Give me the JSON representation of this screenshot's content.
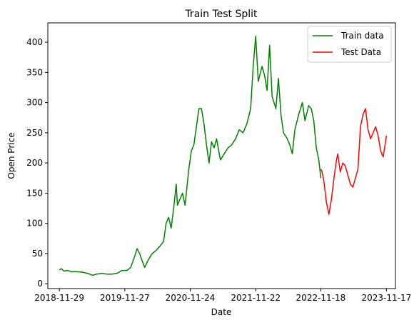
{
  "chart_data": {
    "type": "line",
    "title": "Train Test Split",
    "xlabel": "Date",
    "ylabel": "Open Price",
    "xlim": [
      "2018-09-26",
      "2024-01-06"
    ],
    "ylim": [
      -8,
      432
    ],
    "grid": false,
    "legend": "top-right",
    "x_ticks": [
      "2018-11-29",
      "2019-11-27",
      "2020-11-24",
      "2021-11-22",
      "2022-11-18",
      "2023-11-17"
    ],
    "y_ticks": [
      0,
      50,
      100,
      150,
      200,
      250,
      300,
      350,
      400
    ],
    "series": [
      {
        "name": "Train data",
        "color": "#008000",
        "points": [
          [
            "2018-11-29",
            23
          ],
          [
            "2018-12-10",
            25
          ],
          [
            "2018-12-24",
            21
          ],
          [
            "2019-01-14",
            22
          ],
          [
            "2019-02-04",
            20
          ],
          [
            "2019-03-04",
            20
          ],
          [
            "2019-04-08",
            19
          ],
          [
            "2019-05-06",
            17
          ],
          [
            "2019-06-03",
            14
          ],
          [
            "2019-06-24",
            16
          ],
          [
            "2019-07-22",
            17
          ],
          [
            "2019-08-19",
            16
          ],
          [
            "2019-09-16",
            16
          ],
          [
            "2019-10-14",
            17
          ],
          [
            "2019-11-11",
            22
          ],
          [
            "2019-12-09",
            22
          ],
          [
            "2019-12-30",
            27
          ],
          [
            "2020-01-20",
            45
          ],
          [
            "2020-02-03",
            58
          ],
          [
            "2020-02-17",
            50
          ],
          [
            "2020-03-02",
            38
          ],
          [
            "2020-03-16",
            27
          ],
          [
            "2020-04-06",
            40
          ],
          [
            "2020-04-27",
            50
          ],
          [
            "2020-05-18",
            55
          ],
          [
            "2020-06-08",
            62
          ],
          [
            "2020-06-29",
            70
          ],
          [
            "2020-07-13",
            100
          ],
          [
            "2020-07-27",
            110
          ],
          [
            "2020-08-10",
            92
          ],
          [
            "2020-08-24",
            125
          ],
          [
            "2020-09-07",
            165
          ],
          [
            "2020-09-14",
            130
          ],
          [
            "2020-09-28",
            140
          ],
          [
            "2020-10-12",
            150
          ],
          [
            "2020-10-26",
            130
          ],
          [
            "2020-11-16",
            190
          ],
          [
            "2020-11-30",
            220
          ],
          [
            "2020-12-14",
            230
          ],
          [
            "2020-12-28",
            260
          ],
          [
            "2021-01-11",
            290
          ],
          [
            "2021-01-25",
            290
          ],
          [
            "2021-02-08",
            265
          ],
          [
            "2021-02-22",
            230
          ],
          [
            "2021-03-08",
            200
          ],
          [
            "2021-03-22",
            235
          ],
          [
            "2021-04-05",
            225
          ],
          [
            "2021-04-19",
            240
          ],
          [
            "2021-05-10",
            205
          ],
          [
            "2021-05-31",
            215
          ],
          [
            "2021-06-21",
            225
          ],
          [
            "2021-07-12",
            230
          ],
          [
            "2021-08-02",
            240
          ],
          [
            "2021-08-23",
            255
          ],
          [
            "2021-09-13",
            250
          ],
          [
            "2021-10-04",
            265
          ],
          [
            "2021-10-25",
            290
          ],
          [
            "2021-11-08",
            360
          ],
          [
            "2021-11-22",
            410
          ],
          [
            "2021-12-06",
            335
          ],
          [
            "2021-12-27",
            360
          ],
          [
            "2022-01-10",
            345
          ],
          [
            "2022-01-24",
            320
          ],
          [
            "2022-02-07",
            395
          ],
          [
            "2022-02-21",
            310
          ],
          [
            "2022-03-14",
            290
          ],
          [
            "2022-03-28",
            340
          ],
          [
            "2022-04-11",
            280
          ],
          [
            "2022-04-25",
            250
          ],
          [
            "2022-05-16",
            240
          ],
          [
            "2022-05-30",
            230
          ],
          [
            "2022-06-13",
            215
          ],
          [
            "2022-06-27",
            255
          ],
          [
            "2022-07-18",
            280
          ],
          [
            "2022-08-08",
            300
          ],
          [
            "2022-08-22",
            270
          ],
          [
            "2022-09-12",
            295
          ],
          [
            "2022-09-26",
            290
          ],
          [
            "2022-10-10",
            270
          ],
          [
            "2022-10-24",
            225
          ],
          [
            "2022-11-07",
            205
          ],
          [
            "2022-11-18",
            175
          ]
        ]
      },
      {
        "name": "Test Data",
        "color": "#ff0000",
        "points": [
          [
            "2022-11-18",
            190
          ],
          [
            "2022-11-25",
            185
          ],
          [
            "2022-12-05",
            170
          ],
          [
            "2022-12-19",
            135
          ],
          [
            "2023-01-02",
            115
          ],
          [
            "2023-01-16",
            140
          ],
          [
            "2023-01-30",
            175
          ],
          [
            "2023-02-13",
            205
          ],
          [
            "2023-02-20",
            215
          ],
          [
            "2023-03-06",
            185
          ],
          [
            "2023-03-20",
            200
          ],
          [
            "2023-04-03",
            195
          ],
          [
            "2023-04-17",
            180
          ],
          [
            "2023-05-01",
            165
          ],
          [
            "2023-05-15",
            160
          ],
          [
            "2023-05-29",
            175
          ],
          [
            "2023-06-12",
            190
          ],
          [
            "2023-06-26",
            260
          ],
          [
            "2023-07-10",
            280
          ],
          [
            "2023-07-24",
            290
          ],
          [
            "2023-08-07",
            255
          ],
          [
            "2023-08-21",
            240
          ],
          [
            "2023-09-04",
            250
          ],
          [
            "2023-09-18",
            260
          ],
          [
            "2023-10-02",
            245
          ],
          [
            "2023-10-16",
            220
          ],
          [
            "2023-10-30",
            210
          ],
          [
            "2023-11-17",
            245
          ]
        ]
      }
    ]
  }
}
